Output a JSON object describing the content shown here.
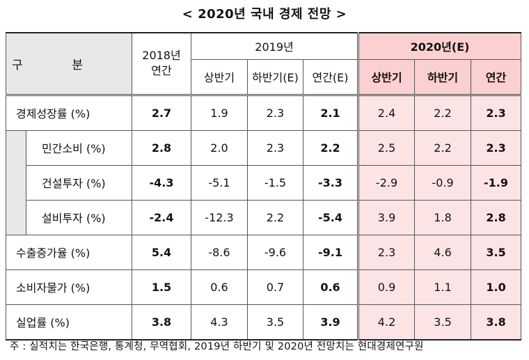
{
  "title": "< 2020년 국내 경제 전망 >",
  "header": {
    "gubun_1": "구",
    "gubun_2": "분",
    "col_2018_line1": "2018년",
    "col_2018_line2": "연간",
    "group_2019": "2019년",
    "group_2020": "2020년(E)",
    "sub_2019": [
      "상반기",
      "하반기(E)",
      "연간(E)"
    ],
    "sub_2020": [
      "상반기",
      "하반기",
      "연간"
    ]
  },
  "rows": [
    {
      "label": "경제성장률 (%)",
      "values": [
        "2.7",
        "1.9",
        "2.3",
        "2.1",
        "2.4",
        "2.2",
        "2.3"
      ]
    },
    {
      "label": "민간소비 (%)",
      "values": [
        "2.8",
        "2.0",
        "2.3",
        "2.2",
        "2.5",
        "2.2",
        "2.3"
      ]
    },
    {
      "label": "건설투자 (%)",
      "values": [
        "-4.3",
        "-5.1",
        "-1.5",
        "-3.3",
        "-2.9",
        "-0.9",
        "-1.9"
      ]
    },
    {
      "label": "설비투자 (%)",
      "values": [
        "-2.4",
        "-12.3",
        "2.2",
        "-5.4",
        "3.9",
        "1.8",
        "2.8"
      ]
    },
    {
      "label": "수출증가율 (%)",
      "values": [
        "5.4",
        "-8.6",
        "-9.6",
        "-9.1",
        "2.3",
        "4.6",
        "3.5"
      ]
    },
    {
      "label": "소비자물가 (%)",
      "values": [
        "1.5",
        "0.6",
        "0.7",
        "0.6",
        "0.9",
        "1.1",
        "1.0"
      ]
    },
    {
      "label": "실업률 (%)",
      "values": [
        "3.8",
        "4.3",
        "3.5",
        "3.9",
        "4.2",
        "3.5",
        "3.8"
      ]
    }
  ],
  "footnote": "주 : 실적치는 한국은행, 통계청, 무역협회, 2019년 하반기 및 2020년 전망치는 현대경제연구원"
}
